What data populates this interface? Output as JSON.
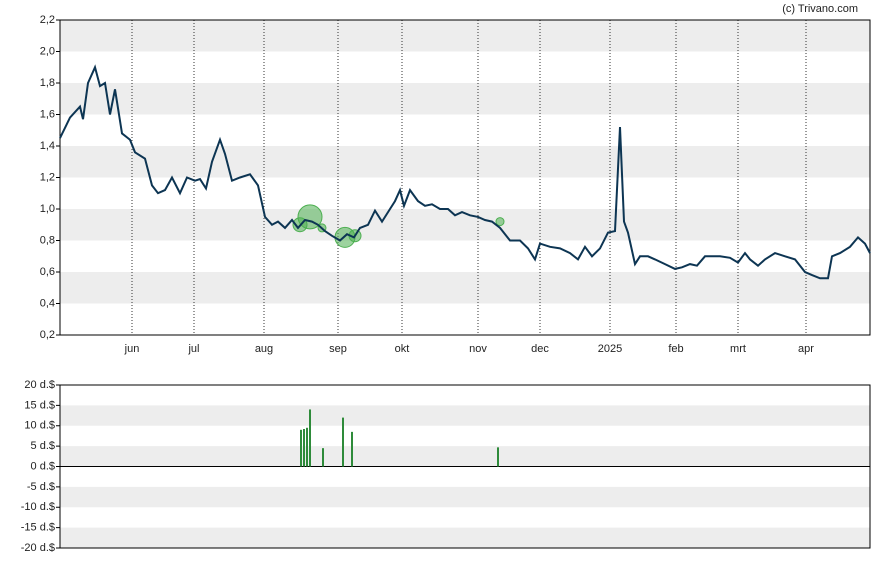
{
  "chart_data": [
    {
      "type": "line",
      "credit": "(c) Trivano.com",
      "xlim": [
        0,
        405
      ],
      "xticks": [
        {
          "value": 36,
          "label": "jun"
        },
        {
          "value": 67,
          "label": "jul"
        },
        {
          "value": 102,
          "label": "aug"
        },
        {
          "value": 139,
          "label": "sep"
        },
        {
          "value": 171,
          "label": "okt"
        },
        {
          "value": 209,
          "label": "nov"
        },
        {
          "value": 240,
          "label": "dec"
        },
        {
          "value": 275,
          "label": "2025"
        },
        {
          "value": 308,
          "label": "feb"
        },
        {
          "value": 339,
          "label": "mrt"
        },
        {
          "value": 373,
          "label": "apr"
        }
      ],
      "ylim": [
        0.2,
        2.2
      ],
      "yticks": [
        {
          "value": 0.2,
          "label": "0,2"
        },
        {
          "value": 0.4,
          "label": "0,4"
        },
        {
          "value": 0.6,
          "label": "0,6"
        },
        {
          "value": 0.8,
          "label": "0,8"
        },
        {
          "value": 1.0,
          "label": "1,0"
        },
        {
          "value": 1.2,
          "label": "1,2"
        },
        {
          "value": 1.4,
          "label": "1,4"
        },
        {
          "value": 1.6,
          "label": "1,6"
        },
        {
          "value": 1.8,
          "label": "1,8"
        },
        {
          "value": 2.0,
          "label": "2,0"
        },
        {
          "value": 2.2,
          "label": "2,2"
        }
      ],
      "color": "#0d3553",
      "x": [
        0,
        5,
        10,
        11.5,
        14,
        17.5,
        20,
        22.5,
        25,
        27.5,
        31,
        35,
        37.5,
        42.5,
        46,
        49,
        52.5,
        56,
        60,
        63.5,
        67.5,
        70,
        73,
        76,
        80,
        82.5,
        86,
        90,
        95,
        99,
        102.5,
        106,
        109,
        112.5,
        116,
        119,
        122.5,
        126,
        129,
        132.5,
        136,
        140,
        143.5,
        147,
        150,
        154,
        157.5,
        161,
        165,
        167.5,
        170,
        172,
        175,
        179,
        182.5,
        186,
        190,
        194,
        197.5,
        201,
        205,
        209,
        212.5,
        216,
        220,
        225,
        230,
        234,
        237.5,
        240,
        245,
        250,
        255,
        259,
        262.5,
        266,
        270,
        274,
        277.5,
        280,
        282,
        284,
        287.5,
        290,
        294,
        297.5,
        302.5,
        307.5,
        311,
        315,
        318.5,
        322.5,
        326,
        330,
        335,
        339,
        342.5,
        345,
        349,
        352.5,
        357.5,
        362.5,
        367.5,
        372.5,
        376,
        380,
        384,
        386,
        390,
        395,
        399,
        402.5,
        405
      ],
      "values": [
        1.45,
        1.58,
        1.65,
        1.57,
        1.8,
        1.9,
        1.78,
        1.8,
        1.6,
        1.76,
        1.48,
        1.44,
        1.36,
        1.32,
        1.15,
        1.1,
        1.12,
        1.2,
        1.1,
        1.2,
        1.18,
        1.19,
        1.13,
        1.3,
        1.44,
        1.35,
        1.18,
        1.2,
        1.22,
        1.15,
        0.95,
        0.9,
        0.92,
        0.88,
        0.93,
        0.88,
        0.93,
        0.92,
        0.9,
        0.86,
        0.83,
        0.8,
        0.84,
        0.82,
        0.88,
        0.9,
        0.99,
        0.92,
        1.0,
        1.05,
        1.12,
        1.02,
        1.12,
        1.05,
        1.02,
        1.03,
        1.0,
        1.0,
        0.96,
        0.98,
        0.96,
        0.95,
        0.93,
        0.92,
        0.88,
        0.8,
        0.8,
        0.75,
        0.68,
        0.78,
        0.76,
        0.75,
        0.72,
        0.68,
        0.76,
        0.7,
        0.75,
        0.85,
        0.86,
        1.52,
        0.92,
        0.85,
        0.65,
        0.7,
        0.7,
        0.68,
        0.65,
        0.62,
        0.63,
        0.65,
        0.64,
        0.7,
        0.7,
        0.7,
        0.69,
        0.66,
        0.72,
        0.68,
        0.64,
        0.68,
        0.72,
        0.7,
        0.68,
        0.6,
        0.58,
        0.56,
        0.56,
        0.7,
        0.72,
        0.76,
        0.82,
        0.78,
        0.72
      ],
      "bubbles": {
        "color": "#4caf50",
        "x": [
          120,
          125,
          131,
          142.5,
          147.5,
          220
        ],
        "values": [
          0.9,
          0.95,
          0.88,
          0.82,
          0.83,
          0.92
        ],
        "sizes": [
          7,
          12,
          4,
          10,
          6,
          4
        ]
      }
    },
    {
      "type": "bar",
      "xlim": [
        0,
        405
      ],
      "ylim": [
        -20,
        20
      ],
      "yticks": [
        {
          "value": 20,
          "label": "20 d.$"
        },
        {
          "value": 15,
          "label": "15 d.$"
        },
        {
          "value": 10,
          "label": "10 d.$"
        },
        {
          "value": 5,
          "label": "5 d.$"
        },
        {
          "value": 0,
          "label": "0 d.$"
        },
        {
          "value": -5,
          "label": "-5 d.$"
        },
        {
          "value": -10,
          "label": "-10 d.$"
        },
        {
          "value": -15,
          "label": "-15 d.$"
        },
        {
          "value": -20,
          "label": "-20 d.$"
        }
      ],
      "color": "#2e8b3a",
      "x": [
        120.5,
        122,
        123.5,
        125,
        131.5,
        141.5,
        146,
        219
      ],
      "values": [
        9,
        9.2,
        9.5,
        14,
        4.5,
        12,
        8.5,
        4.7
      ]
    }
  ]
}
